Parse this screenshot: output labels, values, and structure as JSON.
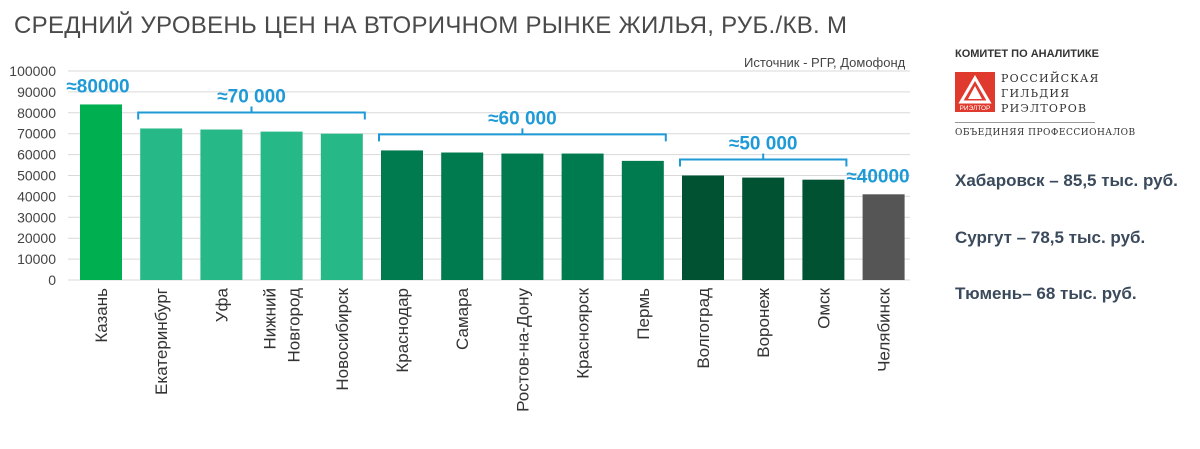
{
  "title": "СРЕДНИЙ УРОВЕНЬ ЦЕН НА ВТОРИЧНОМ РЫНКЕ ЖИЛЬЯ, РУБ./КВ. М",
  "source": "Источник - РГР, Домофонд",
  "logo": {
    "committee": "КОМИТЕТ ПО АНАЛИТИКЕ",
    "name_lines": [
      "РОССИЙСКАЯ",
      "ГИЛЬДИЯ",
      "РИЭЛТОРОВ"
    ],
    "badge": "РИЭЛТОР",
    "tagline": "ОБЪЕДИНЯЯ ПРОФЕССИОНАЛОВ",
    "color": "#e03a2f"
  },
  "side_notes": [
    "Хабаровск – 85,5 тыс. руб.",
    "Сургут – 78,5 тыс. руб.",
    "Тюмень– 68 тыс. руб."
  ],
  "chart_data": {
    "type": "bar",
    "categories": [
      "Казань",
      "Екатеринбург",
      "Уфа",
      "Нижний Новгород",
      "Новосибирск",
      "Краснодар",
      "Самара",
      "Ростов-на-Дону",
      "Красноярск",
      "Пермь",
      "Волгоград",
      "Воронеж",
      "Омск",
      "Челябинск"
    ],
    "values": [
      84000,
      72500,
      72000,
      71000,
      70000,
      62000,
      61000,
      60500,
      60500,
      57000,
      50000,
      49000,
      48000,
      41000
    ],
    "colors": [
      "#00b050",
      "#27b887",
      "#27b887",
      "#27b887",
      "#27b887",
      "#007a4f",
      "#007a4f",
      "#007a4f",
      "#007a4f",
      "#007a4f",
      "#005232",
      "#005232",
      "#005232",
      "#555555"
    ],
    "ylim": [
      0,
      100000
    ],
    "yticks": [
      0,
      10000,
      20000,
      30000,
      40000,
      50000,
      60000,
      70000,
      80000,
      90000,
      100000
    ],
    "grid": true,
    "annotations": [
      {
        "text": "≈80000",
        "from": 0,
        "to": 0,
        "bracket": false
      },
      {
        "text": "≈70 000",
        "from": 1,
        "to": 4,
        "bracket": true
      },
      {
        "text": "≈60 000",
        "from": 5,
        "to": 9,
        "bracket": true
      },
      {
        "text": "≈50 000",
        "from": 10,
        "to": 12,
        "bracket": true
      },
      {
        "text": "≈40000",
        "from": 13,
        "to": 13,
        "bracket": false
      }
    ],
    "annotation_color": "#1e9ad6"
  }
}
